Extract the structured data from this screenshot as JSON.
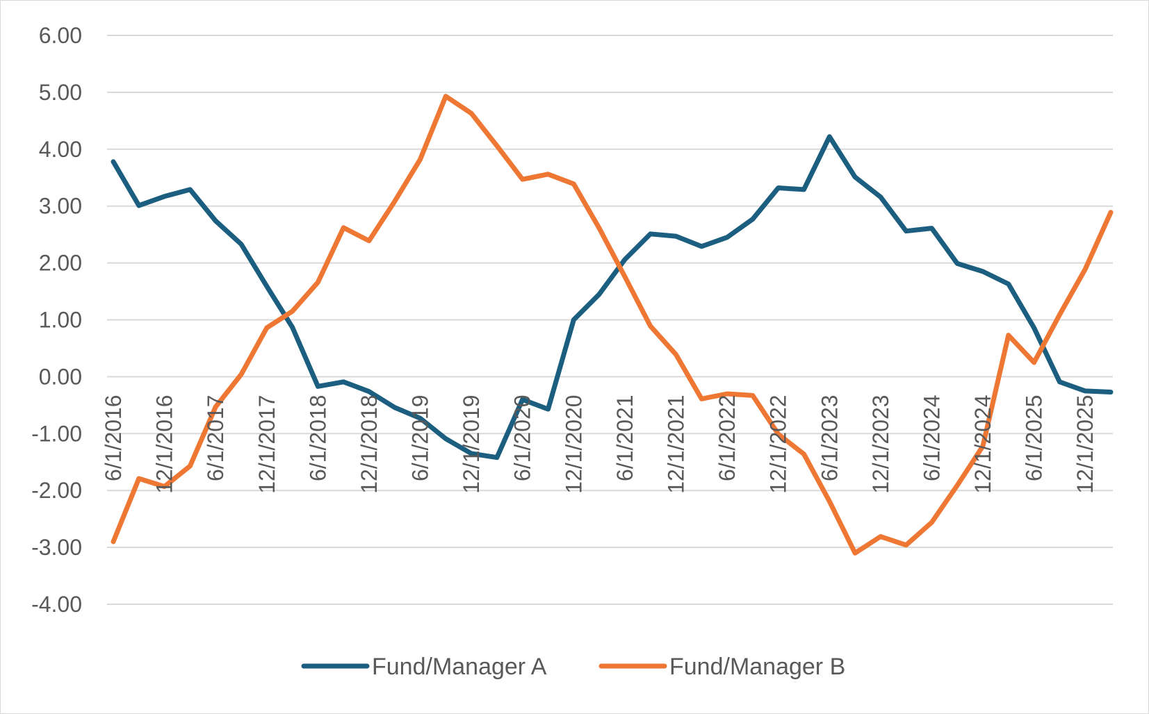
{
  "chart_data": {
    "type": "line",
    "title": "",
    "xlabel": "",
    "ylabel": "",
    "ylim": [
      -4,
      6
    ],
    "y_ticks": [
      "6.00",
      "5.00",
      "4.00",
      "3.00",
      "2.00",
      "1.00",
      "0.00",
      "-1.00",
      "-2.00",
      "-3.00",
      "-4.00"
    ],
    "x_tick_labels": [
      "6/1/2016",
      "12/1/2016",
      "6/1/2017",
      "12/1/2017",
      "6/1/2018",
      "12/1/2018",
      "6/1/2019",
      "12/1/2019",
      "6/1/2020",
      "12/1/2020",
      "6/1/2021",
      "12/1/2021",
      "6/1/2022",
      "12/1/2022",
      "6/1/2023",
      "12/1/2023",
      "6/1/2024",
      "12/1/2024",
      "6/1/2025",
      "12/1/2025"
    ],
    "x": [
      "6/1/2016",
      "9/1/2016",
      "12/1/2016",
      "3/1/2017",
      "6/1/2017",
      "9/1/2017",
      "12/1/2017",
      "3/1/2018",
      "6/1/2018",
      "9/1/2018",
      "12/1/2018",
      "3/1/2019",
      "6/1/2019",
      "9/1/2019",
      "12/1/2019",
      "3/1/2020",
      "6/1/2020",
      "9/1/2020",
      "12/1/2020",
      "3/1/2021",
      "6/1/2021",
      "9/1/2021",
      "12/1/2021",
      "3/1/2022",
      "6/1/2022",
      "9/1/2022",
      "12/1/2022",
      "3/1/2023",
      "6/1/2023",
      "9/1/2023",
      "12/1/2023",
      "3/1/2024",
      "6/1/2024",
      "9/1/2024",
      "12/1/2024",
      "3/1/2025",
      "6/1/2025",
      "9/1/2025",
      "12/1/2025",
      "3/1/2026"
    ],
    "series": [
      {
        "name": "Fund/Manager A",
        "color": "#1b5e7f",
        "values": [
          3.78,
          3.01,
          3.17,
          3.29,
          2.74,
          2.33,
          1.59,
          0.87,
          -0.17,
          -0.09,
          -0.26,
          -0.54,
          -0.73,
          -1.09,
          -1.35,
          -1.42,
          -0.4,
          -0.57,
          1.0,
          1.45,
          2.06,
          2.51,
          2.47,
          2.29,
          2.45,
          2.77,
          3.32,
          3.29,
          4.22,
          3.51,
          3.16,
          2.56,
          2.61,
          1.99,
          1.85,
          1.63,
          0.86,
          -0.09,
          -0.25,
          -0.27
        ]
      },
      {
        "name": "Fund/Manager B",
        "color": "#ee7734",
        "values": [
          -2.9,
          -1.79,
          -1.93,
          -1.57,
          -0.53,
          0.04,
          0.86,
          1.15,
          1.66,
          2.62,
          2.39,
          3.08,
          3.82,
          4.93,
          4.63,
          4.06,
          3.47,
          3.56,
          3.39,
          2.61,
          1.76,
          0.89,
          0.39,
          -0.39,
          -0.3,
          -0.33,
          -1.01,
          -1.36,
          -2.19,
          -3.1,
          -2.81,
          -2.96,
          -2.56,
          -1.91,
          -1.22,
          0.73,
          0.25,
          1.09,
          1.89,
          2.89
        ]
      }
    ],
    "grid": true,
    "legend_position": "bottom"
  }
}
